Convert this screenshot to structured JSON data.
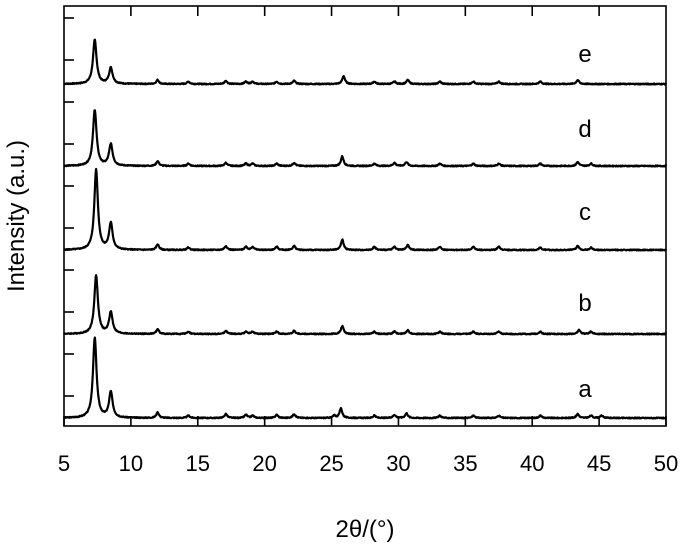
{
  "chart_data": {
    "type": "line",
    "title": "",
    "xlabel": "2θ/(°)",
    "ylabel": "Intensity (a.u.)",
    "xlim": [
      5,
      50
    ],
    "xticks": [
      5,
      10,
      15,
      20,
      25,
      30,
      35,
      40,
      45,
      50
    ],
    "grid": false,
    "legend": "none",
    "series": [
      {
        "name": "a",
        "label": "a",
        "peaks": [
          [
            7.3,
            1.0
          ],
          [
            8.5,
            0.32
          ],
          [
            12.0,
            0.07
          ],
          [
            14.3,
            0.03
          ],
          [
            17.1,
            0.05
          ],
          [
            18.6,
            0.04
          ],
          [
            19.1,
            0.03
          ],
          [
            20.9,
            0.04
          ],
          [
            22.2,
            0.05
          ],
          [
            25.7,
            0.12
          ],
          [
            25.2,
            0.03
          ],
          [
            28.2,
            0.03
          ],
          [
            29.7,
            0.04
          ],
          [
            30.6,
            0.06
          ],
          [
            33.1,
            0.03
          ],
          [
            35.6,
            0.03
          ],
          [
            37.5,
            0.03
          ],
          [
            40.6,
            0.03
          ],
          [
            43.4,
            0.05
          ],
          [
            44.4,
            0.03
          ],
          [
            45.2,
            0.03
          ]
        ]
      },
      {
        "name": "b",
        "label": "b",
        "peaks": [
          [
            7.4,
            0.73
          ],
          [
            8.5,
            0.27
          ],
          [
            12.0,
            0.06
          ],
          [
            14.3,
            0.03
          ],
          [
            17.1,
            0.04
          ],
          [
            18.6,
            0.03
          ],
          [
            19.1,
            0.03
          ],
          [
            20.9,
            0.03
          ],
          [
            22.2,
            0.04
          ],
          [
            25.8,
            0.1
          ],
          [
            28.2,
            0.03
          ],
          [
            29.7,
            0.03
          ],
          [
            30.7,
            0.05
          ],
          [
            33.1,
            0.03
          ],
          [
            35.6,
            0.03
          ],
          [
            37.5,
            0.03
          ],
          [
            40.6,
            0.03
          ],
          [
            43.5,
            0.05
          ],
          [
            44.4,
            0.03
          ]
        ]
      },
      {
        "name": "c",
        "label": "c",
        "peaks": [
          [
            7.4,
            1.0
          ],
          [
            8.5,
            0.33
          ],
          [
            12.0,
            0.07
          ],
          [
            14.3,
            0.03
          ],
          [
            17.1,
            0.05
          ],
          [
            18.6,
            0.04
          ],
          [
            19.1,
            0.04
          ],
          [
            20.9,
            0.04
          ],
          [
            22.2,
            0.05
          ],
          [
            25.8,
            0.13
          ],
          [
            28.2,
            0.04
          ],
          [
            29.7,
            0.04
          ],
          [
            30.7,
            0.06
          ],
          [
            33.1,
            0.04
          ],
          [
            35.6,
            0.04
          ],
          [
            37.5,
            0.04
          ],
          [
            40.6,
            0.03
          ],
          [
            43.4,
            0.05
          ],
          [
            44.4,
            0.03
          ]
        ]
      },
      {
        "name": "d",
        "label": "d",
        "peaks": [
          [
            7.3,
            0.7
          ],
          [
            8.5,
            0.27
          ],
          [
            12.0,
            0.06
          ],
          [
            14.3,
            0.03
          ],
          [
            17.1,
            0.04
          ],
          [
            18.6,
            0.03
          ],
          [
            19.1,
            0.03
          ],
          [
            20.9,
            0.03
          ],
          [
            22.2,
            0.04
          ],
          [
            25.8,
            0.12
          ],
          [
            28.2,
            0.03
          ],
          [
            29.7,
            0.04
          ],
          [
            30.6,
            0.05
          ],
          [
            33.1,
            0.03
          ],
          [
            35.6,
            0.03
          ],
          [
            37.5,
            0.03
          ],
          [
            40.6,
            0.03
          ],
          [
            43.4,
            0.05
          ],
          [
            44.4,
            0.03
          ]
        ]
      },
      {
        "name": "e",
        "label": "e",
        "peaks": [
          [
            7.3,
            0.55
          ],
          [
            8.5,
            0.2
          ],
          [
            12.0,
            0.05
          ],
          [
            14.3,
            0.03
          ],
          [
            17.1,
            0.04
          ],
          [
            18.6,
            0.03
          ],
          [
            19.1,
            0.03
          ],
          [
            20.9,
            0.03
          ],
          [
            22.2,
            0.04
          ],
          [
            25.9,
            0.1
          ],
          [
            28.2,
            0.03
          ],
          [
            29.7,
            0.03
          ],
          [
            30.7,
            0.05
          ],
          [
            33.1,
            0.03
          ],
          [
            35.6,
            0.03
          ],
          [
            37.5,
            0.03
          ],
          [
            40.6,
            0.03
          ],
          [
            43.4,
            0.05
          ]
        ]
      }
    ]
  }
}
